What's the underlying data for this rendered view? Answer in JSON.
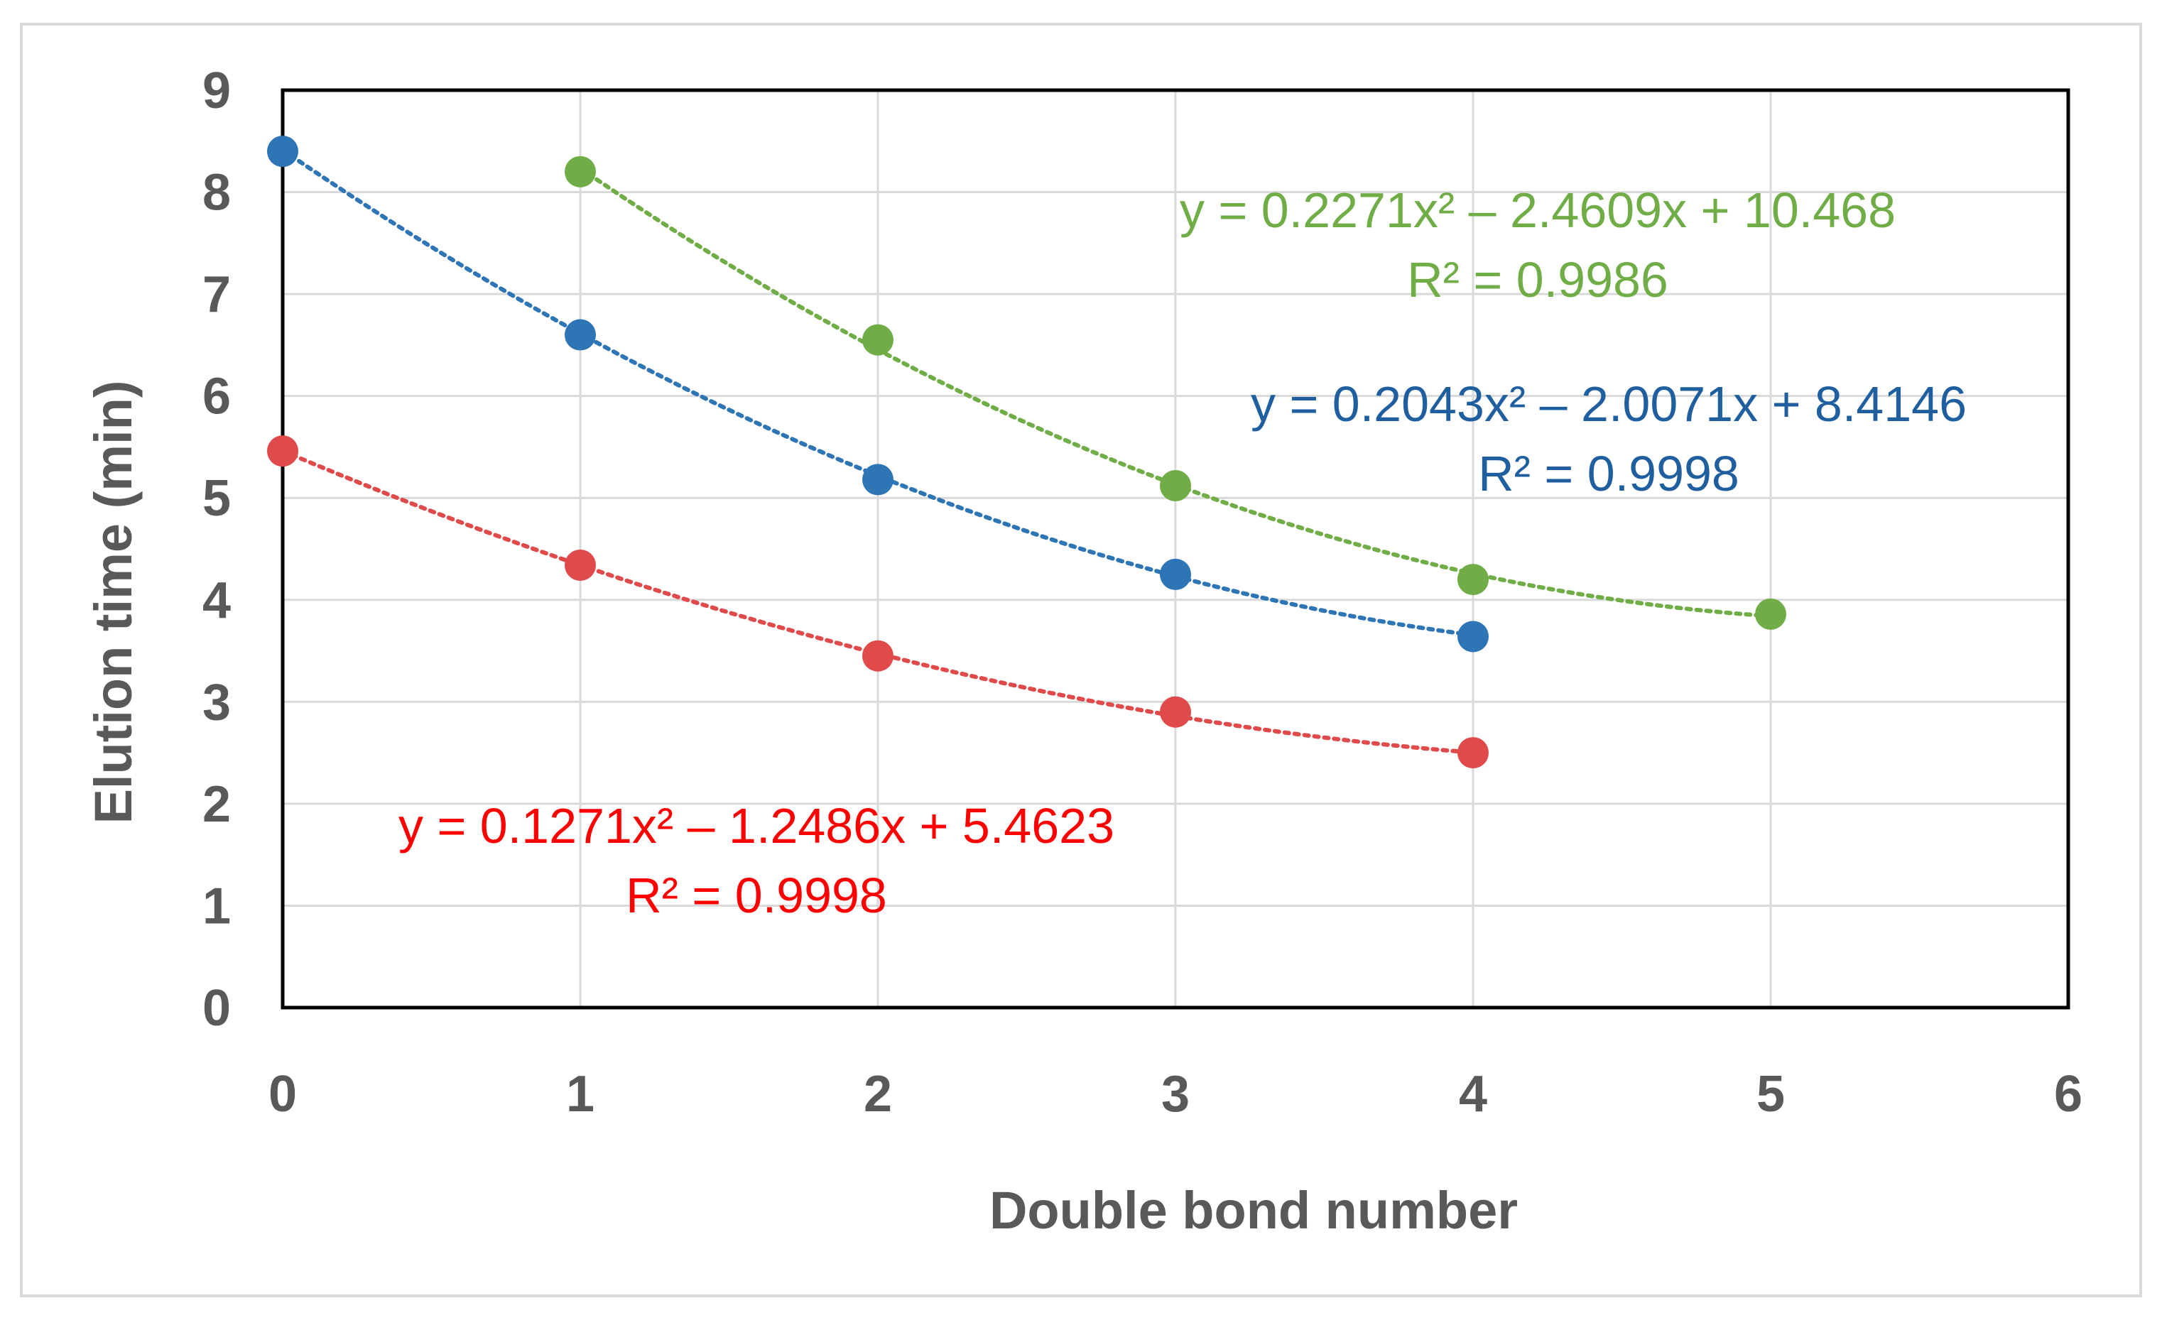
{
  "chart_data": {
    "type": "scatter",
    "title": "",
    "xlabel": "Double bond number",
    "ylabel": "Elution time (min)",
    "xlim": [
      0,
      6
    ],
    "ylim": [
      0,
      9
    ],
    "x_ticks": [
      "0",
      "1",
      "2",
      "3",
      "4",
      "5",
      "6"
    ],
    "y_ticks": [
      "0",
      "1",
      "2",
      "3",
      "4",
      "5",
      "6",
      "7",
      "8",
      "9"
    ],
    "grid": true,
    "legend": "none",
    "series": [
      {
        "color": "#70ad47",
        "x": [
          1,
          2,
          3,
          4,
          5
        ],
        "y": [
          8.2,
          6.55,
          5.12,
          4.2,
          3.86
        ],
        "trendline": {
          "type": "polynomial",
          "a": 0.2271,
          "b": -2.4609,
          "c": 10.468
        },
        "equation": "y = 0.2271x² – 2.4609x + 10.468",
        "r2": "R² = 0.9986"
      },
      {
        "color": "#2e75b6",
        "x": [
          0,
          1,
          2,
          3,
          4
        ],
        "y": [
          8.4,
          6.6,
          5.18,
          4.25,
          3.64
        ],
        "trendline": {
          "type": "polynomial",
          "a": 0.2043,
          "b": -2.0071,
          "c": 8.4146
        },
        "equation": "y = 0.2043x² – 2.0071x + 8.4146",
        "r2": "R² = 0.9998"
      },
      {
        "color": "#e04a4a",
        "x": [
          0,
          1,
          2,
          3,
          4
        ],
        "y": [
          5.46,
          4.34,
          3.45,
          2.9,
          2.5
        ],
        "trendline": {
          "type": "polynomial",
          "a": 0.1271,
          "b": -1.2486,
          "c": 5.4623
        },
        "equation": "y = 0.1271x² – 1.2486x + 5.4623",
        "r2": "R² = 0.9998"
      }
    ]
  },
  "eq_colors": [
    "#70ad47",
    "#1f5fa0",
    "#ff0000"
  ]
}
